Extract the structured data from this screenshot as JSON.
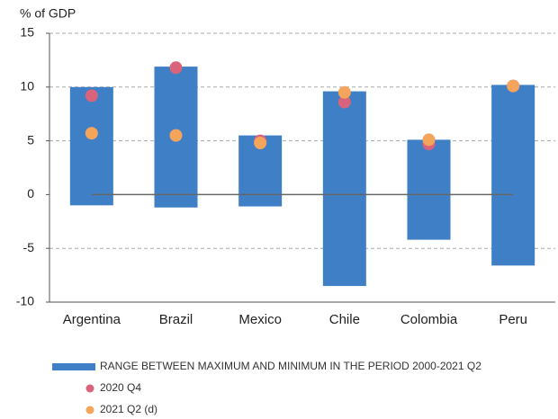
{
  "chart_data": {
    "type": "range_dot",
    "y_axis_label": "% of GDP",
    "categories": [
      "Argentina",
      "Brazil",
      "Mexico",
      "Chile",
      "Colombia",
      "Peru"
    ],
    "series": [
      {
        "name": "RANGE BETWEEN MAXIMUM AND MINIMUM IN THE PERIOD 2000-2021 Q2",
        "color": "#3f7fc6",
        "low": [
          -1.0,
          -1.2,
          -1.1,
          -8.5,
          -4.2,
          -6.6
        ],
        "high": [
          10.0,
          11.9,
          5.5,
          9.6,
          5.1,
          10.2
        ]
      },
      {
        "name": "2020 Q4",
        "color": "#d9637b",
        "values": [
          9.2,
          11.8,
          5.0,
          8.6,
          4.7,
          10.1
        ]
      },
      {
        "name": "2021 Q2 (d)",
        "color": "#f5a45c",
        "values": [
          5.7,
          5.5,
          4.8,
          9.5,
          5.1,
          10.1
        ]
      }
    ],
    "ylim": [
      -10,
      15
    ],
    "yticks": [
      -10,
      -5,
      0,
      5,
      10,
      15
    ],
    "grid": true
  }
}
